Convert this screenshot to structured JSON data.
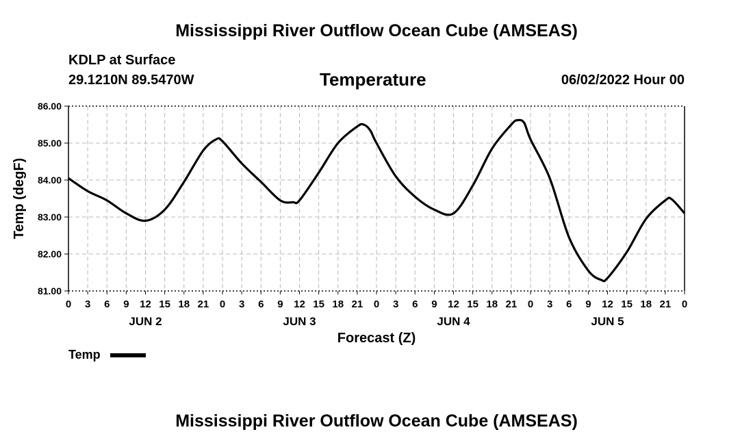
{
  "header": {
    "title_top": "Mississippi River Outflow Ocean Cube (AMSEAS)",
    "station": "KDLP at Surface",
    "coords": "29.1210N  89.5470W",
    "variable": "Temperature",
    "datetime": "06/02/2022 Hour 00",
    "title_bottom": "Mississippi River Outflow Ocean Cube (AMSEAS)"
  },
  "legend": {
    "label": "Temp"
  },
  "chart_data": {
    "type": "line",
    "title": "Temperature",
    "xlabel": "Forecast (Z)",
    "ylabel": "Temp (degF)",
    "ylim": [
      81.0,
      86.0
    ],
    "xlim": [
      0,
      96
    ],
    "y_ticks": [
      "81.00",
      "82.00",
      "83.00",
      "84.00",
      "85.00",
      "86.00"
    ],
    "y_tick_values": [
      81,
      82,
      83,
      84,
      85,
      86
    ],
    "x_tick_labels": [
      "0",
      "3",
      "6",
      "9",
      "12",
      "15",
      "18",
      "21",
      "0",
      "3",
      "6",
      "9",
      "12",
      "15",
      "18",
      "21",
      "0",
      "3",
      "6",
      "9",
      "12",
      "15",
      "18",
      "21",
      "0",
      "3",
      "6",
      "9",
      "12",
      "15",
      "18",
      "21",
      "0"
    ],
    "x_tick_hours": [
      0,
      3,
      6,
      9,
      12,
      15,
      18,
      21,
      24,
      27,
      30,
      33,
      36,
      39,
      42,
      45,
      48,
      51,
      54,
      57,
      60,
      63,
      66,
      69,
      72,
      75,
      78,
      81,
      84,
      87,
      90,
      93,
      96
    ],
    "day_labels": [
      {
        "label": "JUN 2",
        "hour": 12
      },
      {
        "label": "JUN 3",
        "hour": 36
      },
      {
        "label": "JUN 4",
        "hour": 60
      },
      {
        "label": "JUN 5",
        "hour": 84
      }
    ],
    "grid": true,
    "series": [
      {
        "name": "Temp",
        "color": "#000000",
        "x": [
          0,
          3,
          6,
          9,
          12,
          15,
          18,
          21,
          23,
          24,
          27,
          30,
          33,
          35,
          36,
          39,
          42,
          45,
          46,
          47,
          48,
          51,
          54,
          57,
          60,
          63,
          66,
          69,
          70,
          71,
          72,
          75,
          78,
          81,
          83,
          84,
          87,
          90,
          93,
          94,
          96
        ],
        "values": [
          84.05,
          83.7,
          83.45,
          83.1,
          82.9,
          83.2,
          83.95,
          84.8,
          85.1,
          85.05,
          84.45,
          83.95,
          83.45,
          83.4,
          83.45,
          84.2,
          85.0,
          85.45,
          85.5,
          85.35,
          85.0,
          84.1,
          83.55,
          83.2,
          83.1,
          83.85,
          84.85,
          85.5,
          85.62,
          85.55,
          85.1,
          84.05,
          82.45,
          81.55,
          81.3,
          81.35,
          82.05,
          82.95,
          83.45,
          83.48,
          83.1
        ]
      }
    ]
  }
}
